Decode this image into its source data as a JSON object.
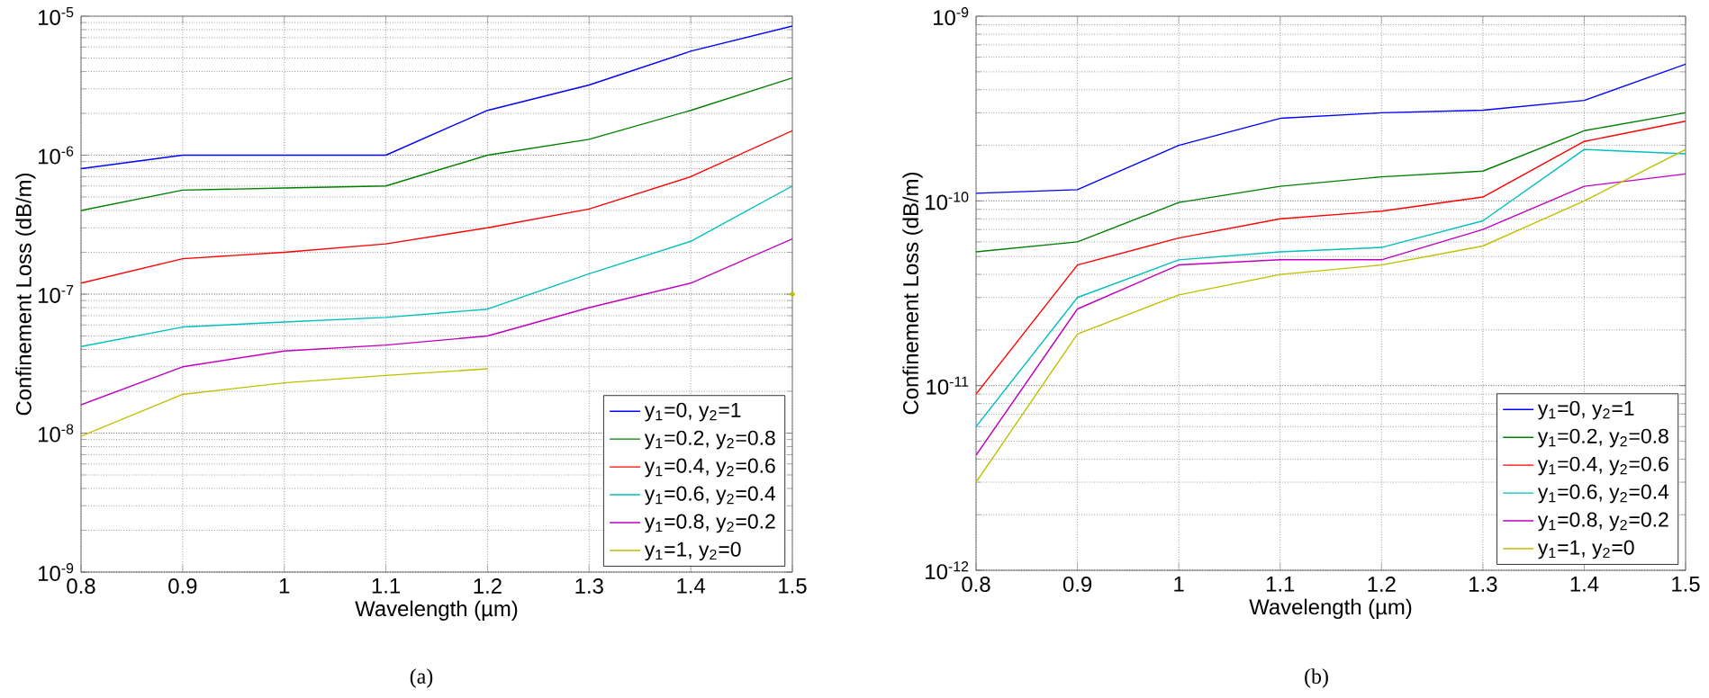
{
  "chart_data": [
    {
      "type": "line",
      "xlabel": "Wavelength (µm)",
      "ylabel": "Confinement Loss (dB/m)",
      "annotations": [
        "(a)"
      ],
      "x": [
        0.8,
        0.9,
        1,
        1.1,
        1.2,
        1.3,
        1.4,
        1.5
      ],
      "xlim": [
        0.8,
        1.5
      ],
      "xticks": [
        0.8,
        0.9,
        1,
        1.1,
        1.2,
        1.3,
        1.4,
        1.5
      ],
      "ylim": [
        1e-09,
        1e-05
      ],
      "yticks": [
        {
          "value": 1e-09,
          "label": "10$^{-9}$"
        },
        {
          "value": 1e-08,
          "label": "10$^{-8}$"
        },
        {
          "value": 1e-07,
          "label": "10$^{-7}$"
        },
        {
          "value": 1e-06,
          "label": "10$^{-6}$"
        },
        {
          "value": 1e-05,
          "label": "10$^{-5}$"
        }
      ],
      "log": "y",
      "grid": true,
      "legend": "bottom right",
      "series": [
        {
          "name": "y$_{1}$=0, y$_{2}$=1",
          "color": "#0000ff",
          "values": [
            8e-07,
            1e-06,
            1e-06,
            1e-06,
            2.1e-06,
            3.2e-06,
            5.6e-06,
            8.5e-06
          ]
        },
        {
          "name": "y$_{1}$=0.2, y$_{2}$=0.8",
          "color": "#008000",
          "values": [
            4e-07,
            5.6e-07,
            5.8e-07,
            6e-07,
            1e-06,
            1.3e-06,
            2.1e-06,
            3.6e-06
          ]
        },
        {
          "name": "y$_{1}$=0.4, y$_{2}$=0.6",
          "color": "#ff0000",
          "values": [
            1.2e-07,
            1.8e-07,
            2e-07,
            2.3e-07,
            3e-07,
            4.1e-07,
            7e-07,
            1.5e-06
          ]
        },
        {
          "name": "y$_{1}$=0.6, y$_{2}$=0.4",
          "color": "#00bfbf",
          "values": [
            4.2e-08,
            5.8e-08,
            6.3e-08,
            6.8e-08,
            7.8e-08,
            1.4e-07,
            2.4e-07,
            6e-07
          ]
        },
        {
          "name": "y$_{1}$=0.8, y$_{2}$=0.2",
          "color": "#bf00bf",
          "values": [
            1.6e-08,
            3e-08,
            3.9e-08,
            4.3e-08,
            5e-08,
            8e-08,
            1.2e-07,
            2.5e-07
          ]
        },
        {
          "name": "y$_{1}$=1, y$_{2}$=0",
          "color": "#bfbf00",
          "values": [
            9.5e-09,
            1.9e-08,
            2.3e-08,
            2.6e-08,
            2.9e-08,
            null,
            null,
            1e-07
          ]
        }
      ]
    },
    {
      "type": "line",
      "xlabel": "Wavelength (µm)",
      "ylabel": "Confinement Loss (dB/m)",
      "annotations": [
        "(b)"
      ],
      "x": [
        0.8,
        0.9,
        1,
        1.1,
        1.2,
        1.3,
        1.4,
        1.5
      ],
      "xlim": [
        0.8,
        1.5
      ],
      "xticks": [
        0.8,
        0.9,
        1,
        1.1,
        1.2,
        1.3,
        1.4,
        1.5
      ],
      "ylim": [
        1e-12,
        1e-09
      ],
      "yticks": [
        {
          "value": 1e-12,
          "label": "10$^{-12}$"
        },
        {
          "value": 1e-11,
          "label": "10$^{-11}$"
        },
        {
          "value": 1e-10,
          "label": "10$^{-10}$"
        },
        {
          "value": 1e-09,
          "label": "10$^{-9}$"
        }
      ],
      "log": "y",
      "grid": true,
      "legend": "bottom right",
      "series": [
        {
          "name": "y$_{1}$=0, y$_{2}$=1",
          "color": "#0000ff",
          "values": [
            1.1e-10,
            1.15e-10,
            2e-10,
            2.8e-10,
            3e-10,
            3.1e-10,
            3.5e-10,
            5.5e-10
          ]
        },
        {
          "name": "y$_{1}$=0.2, y$_{2}$=0.8",
          "color": "#008000",
          "values": [
            5.3e-11,
            6e-11,
            9.8e-11,
            1.2e-10,
            1.35e-10,
            1.45e-10,
            2.4e-10,
            3e-10
          ]
        },
        {
          "name": "y$_{1}$=0.4, y$_{2}$=0.6",
          "color": "#ff0000",
          "values": [
            9e-12,
            4.5e-11,
            6.3e-11,
            8e-11,
            8.8e-11,
            1.05e-10,
            2.1e-10,
            2.7e-10
          ]
        },
        {
          "name": "y$_{1}$=0.6, y$_{2}$=0.4",
          "color": "#00bfbf",
          "values": [
            6e-12,
            3e-11,
            4.8e-11,
            5.3e-11,
            5.6e-11,
            7.8e-11,
            1.9e-10,
            1.8e-10
          ]
        },
        {
          "name": "y$_{1}$=0.8, y$_{2}$=0.2",
          "color": "#bf00bf",
          "values": [
            4.2e-12,
            2.6e-11,
            4.5e-11,
            4.8e-11,
            4.8e-11,
            7e-11,
            1.2e-10,
            1.4e-10
          ]
        },
        {
          "name": "y$_{1}$=1, y$_{2}$=0",
          "color": "#bfbf00",
          "values": [
            3e-12,
            1.9e-11,
            3.1e-11,
            4e-11,
            4.5e-11,
            5.7e-11,
            1e-10,
            1.9e-10
          ]
        }
      ]
    }
  ]
}
